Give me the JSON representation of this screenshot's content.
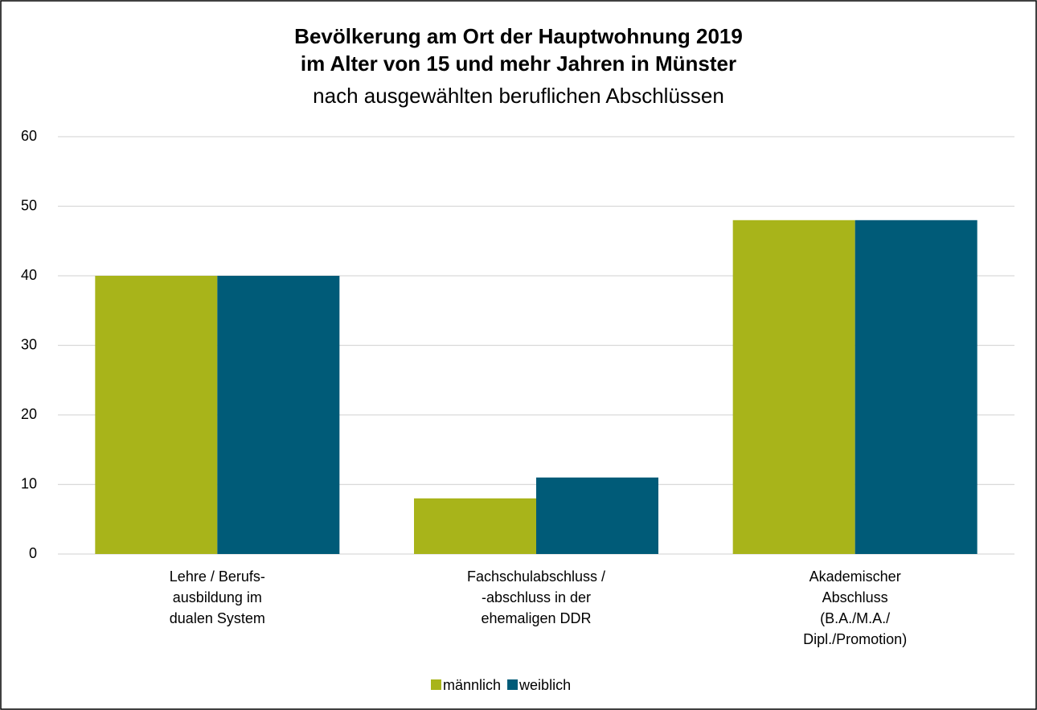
{
  "chart_data": {
    "type": "bar",
    "title": [
      "Bevölkerung am Ort der Hauptwohnung 2019",
      "im Alter von 15 und mehr Jahren in Münster"
    ],
    "subtitle": "nach ausgewählten beruflichen Abschlüssen",
    "categories": [
      [
        "Lehre / Berufs-",
        "ausbildung im",
        "dualen System"
      ],
      [
        "Fachschulabschluss /",
        "-abschluss in der",
        "ehemaligen DDR"
      ],
      [
        "Akademischer",
        "Abschluss",
        "(B.A./M.A./",
        "Dipl./Promotion)"
      ]
    ],
    "series": [
      {
        "name": "männlich",
        "color": "#a8b41a",
        "values": [
          40,
          8,
          48
        ]
      },
      {
        "name": "weiblich",
        "color": "#005b78",
        "values": [
          40,
          11,
          48
        ]
      }
    ],
    "ylim": [
      0,
      60
    ],
    "yticks": [
      0,
      10,
      20,
      30,
      40,
      50,
      60
    ],
    "grid": true,
    "legend": "bottom"
  }
}
